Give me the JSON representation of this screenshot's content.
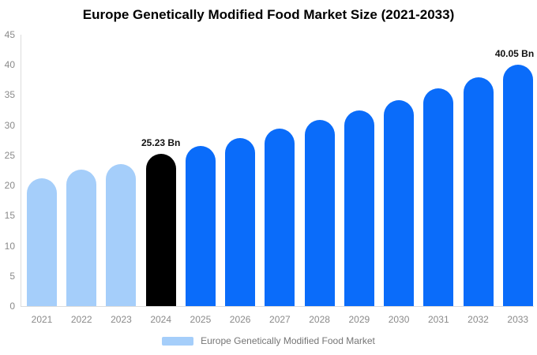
{
  "chart_data": {
    "type": "bar",
    "title": "Europe Genetically Modified Food Market Size (2021-2033)",
    "value_unit": "Bn",
    "categories": [
      "2021",
      "2022",
      "2023",
      "2024",
      "2025",
      "2026",
      "2027",
      "2028",
      "2029",
      "2030",
      "2031",
      "2032",
      "2033"
    ],
    "series": [
      {
        "name": "Europe Genetically Modified Food Market",
        "values": [
          21.2,
          22.6,
          23.6,
          25.23,
          26.5,
          27.9,
          29.4,
          30.9,
          32.4,
          34.2,
          36.1,
          38.0,
          40.05
        ]
      }
    ],
    "bar_roles": [
      "historical",
      "historical",
      "historical",
      "current",
      "forecast",
      "forecast",
      "forecast",
      "forecast",
      "forecast",
      "forecast",
      "forecast",
      "forecast",
      "forecast"
    ],
    "colors": {
      "historical": "#A5CEFA",
      "current": "#000000",
      "forecast": "#0A6CFA"
    },
    "annotations": [
      {
        "category": "2024",
        "text": "25.23 Bn"
      },
      {
        "category": "2033",
        "text": "40.05 Bn"
      }
    ],
    "ylim": [
      0,
      45
    ],
    "yticks": [
      0,
      5,
      10,
      15,
      20,
      25,
      30,
      35,
      40,
      45
    ],
    "grid": false,
    "axis_label_color": "#8a8a8a",
    "axis_line_color": "#dcdcdc",
    "legend": {
      "position": "bottom",
      "label": "Europe Genetically Modified Food Market",
      "swatch_color": "#A5CEFA"
    }
  }
}
